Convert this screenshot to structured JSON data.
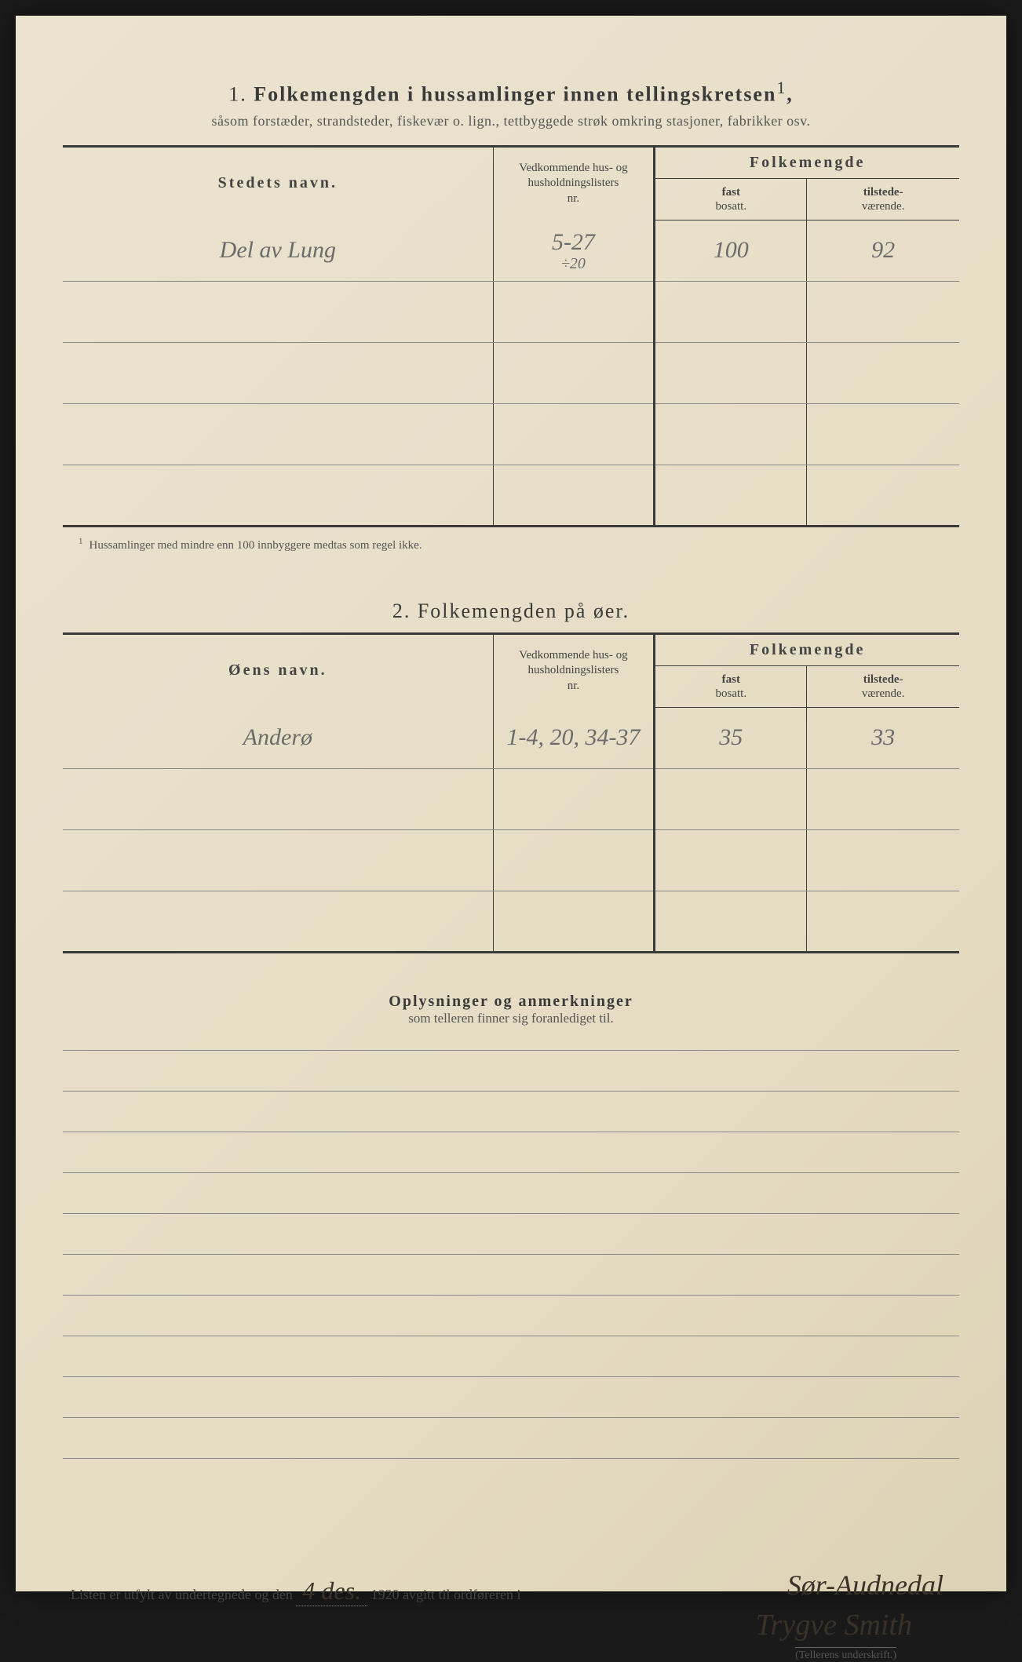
{
  "section1": {
    "number": "1.",
    "title": "Folkemengden i hussamlinger innen tellingskretsen",
    "title_sup": "1",
    "subtitle": "såsom forstæder, strandsteder, fiskevær o. lign., tettbyggede strøk omkring stasjoner, fabrikker osv.",
    "headers": {
      "name": "Stedets navn.",
      "nr_line1": "Vedkommende hus- og",
      "nr_line2": "husholdningslisters",
      "nr_line3": "nr.",
      "folk": "Folkemengde",
      "fast_line1": "fast",
      "fast_line2": "bosatt.",
      "tilst_line1": "tilstede-",
      "tilst_line2": "værende."
    },
    "rows": [
      {
        "name": "Del av Lung",
        "nr": "5-27",
        "nr_extra": "÷20",
        "fast": "100",
        "tilst": "92"
      },
      {
        "name": "",
        "nr": "",
        "fast": "",
        "tilst": ""
      },
      {
        "name": "",
        "nr": "",
        "fast": "",
        "tilst": ""
      },
      {
        "name": "",
        "nr": "",
        "fast": "",
        "tilst": ""
      },
      {
        "name": "",
        "nr": "",
        "fast": "",
        "tilst": ""
      }
    ],
    "footnote_sup": "1",
    "footnote": "Hussamlinger med mindre enn 100 innbyggere medtas som regel ikke."
  },
  "section2": {
    "number": "2.",
    "title": "Folkemengden på øer.",
    "headers": {
      "name": "Øens navn.",
      "nr_line1": "Vedkommende hus- og",
      "nr_line2": "husholdningslisters",
      "nr_line3": "nr.",
      "folk": "Folkemengde",
      "fast_line1": "fast",
      "fast_line2": "bosatt.",
      "tilst_line1": "tilstede-",
      "tilst_line2": "værende."
    },
    "rows": [
      {
        "name": "Anderø",
        "nr": "1-4, 20, 34-37",
        "fast": "35",
        "tilst": "33"
      },
      {
        "name": "",
        "nr": "",
        "fast": "",
        "tilst": ""
      },
      {
        "name": "",
        "nr": "",
        "fast": "",
        "tilst": ""
      },
      {
        "name": "",
        "nr": "",
        "fast": "",
        "tilst": ""
      }
    ]
  },
  "remarks": {
    "title": "Oplysninger og anmerkninger",
    "subtitle": "som telleren finner sig foranlediget til."
  },
  "signature": {
    "text_prefix": "Listen er utfylt av undertegnede og den",
    "date": "4 des.",
    "text_mid": "1920 avgitt til ordføreren i",
    "location": "Sør-Audnedal",
    "name": "Trygve Smith",
    "caption": "(Tellerens underskrift.)"
  }
}
